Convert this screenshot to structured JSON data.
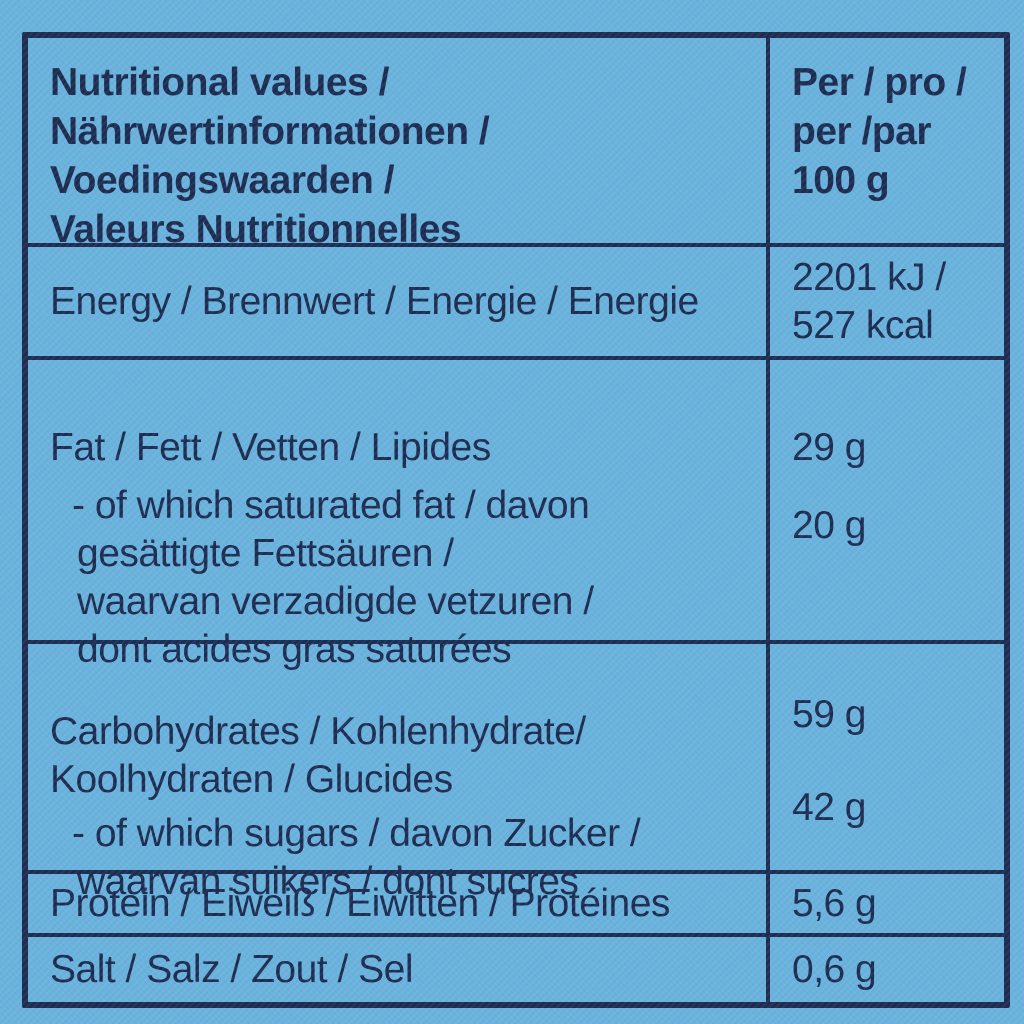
{
  "photo": {
    "background_color": "#69b2dc",
    "ink_color": "#1d2c50"
  },
  "table": {
    "header": {
      "title": "Nutritional values /\nNährwertinformationen /\nVoedingswaarden /\nValeurs Nutritionnelles",
      "per_column": "Per / pro /\nper /par\n100 g"
    },
    "rows": [
      {
        "name": "energy",
        "label": "Energy / Brennwert / Energie / Energie",
        "value": "2201 kJ /\n527 kcal"
      },
      {
        "name": "fat",
        "label": "Fat / Fett / Vetten / Lipides",
        "value": "29 g",
        "sub_label": "- of which saturated fat / davon\ngesättigte Fettsäuren /\nwaarvan verzadigde vetzuren /\ndont acides gras saturées",
        "sub_value": "20 g"
      },
      {
        "name": "carbohydrates",
        "label": "Carbohydrates / Kohlenhydrate/\nKoolhydraten / Glucides",
        "value": "59 g",
        "sub_label": "- of which sugars / davon Zucker /\nwaarvan suikers / dont sucres",
        "sub_value": "42 g"
      },
      {
        "name": "protein",
        "label": "Protein / Eiweiß / Eiwitten / Protéines",
        "value": "5,6 g"
      },
      {
        "name": "salt",
        "label": "Salt / Salz / Zout / Sel",
        "value": "0,6 g"
      }
    ]
  }
}
